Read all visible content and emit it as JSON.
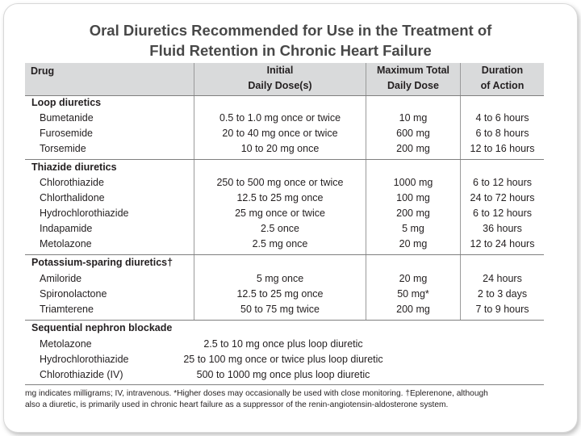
{
  "title_line1": "Oral Diuretics Recommended for Use in the Treatment of",
  "title_line2": "Fluid Retention in Chronic Heart Failure",
  "headers": {
    "drug": "Drug",
    "initial_1": "Initial",
    "initial_2": "Daily Dose(s)",
    "max_1": "Maximum Total",
    "max_2": "Daily Dose",
    "dur_1": "Duration",
    "dur_2": "of Action"
  },
  "sections": [
    {
      "title": "Loop diuretics",
      "rows": [
        {
          "drug": "Bumetanide",
          "initial": "0.5 to 1.0 mg once or twice",
          "max": "10 mg",
          "duration": "4 to 6 hours"
        },
        {
          "drug": "Furosemide",
          "initial": "20 to 40 mg once or twice",
          "max": "600 mg",
          "duration": "6 to 8 hours"
        },
        {
          "drug": "Torsemide",
          "initial": "10 to 20 mg once",
          "max": "200 mg",
          "duration": "12 to 16 hours"
        }
      ]
    },
    {
      "title": "Thiazide diuretics",
      "rows": [
        {
          "drug": "Chlorothiazide",
          "initial": "250 to 500 mg once or twice",
          "max": "1000 mg",
          "duration": "6 to 12 hours"
        },
        {
          "drug": "Chlorthalidone",
          "initial": "12.5 to 25 mg once",
          "max": "100 mg",
          "duration": "24 to 72 hours"
        },
        {
          "drug": "Hydrochlorothiazide",
          "initial": "25 mg once or twice",
          "max": "200 mg",
          "duration": "6 to 12 hours"
        },
        {
          "drug": "Indapamide",
          "initial": "2.5 once",
          "max": "5 mg",
          "duration": "36 hours"
        },
        {
          "drug": "Metolazone",
          "initial": "2.5 mg once",
          "max": "20 mg",
          "duration": "12 to 24 hours"
        }
      ]
    },
    {
      "title": "Potassium-sparing diuretics†",
      "rows": [
        {
          "drug": "Amiloride",
          "initial": "5 mg once",
          "max": "20 mg",
          "duration": "24 hours"
        },
        {
          "drug": "Spironolactone",
          "initial": "12.5 to 25 mg once",
          "max": "50 mg*",
          "duration": "2 to 3 days"
        },
        {
          "drug": "Triamterene",
          "initial": "50 to 75 mg twice",
          "max": "200 mg",
          "duration": "7 to 9 hours"
        }
      ]
    },
    {
      "title": "Sequential nephron blockade",
      "rows": [
        {
          "drug": "Metolazone",
          "combined": "2.5 to 10 mg once plus loop diuretic"
        },
        {
          "drug": "Hydrochlorothiazide",
          "combined": "25 to 100 mg once or twice plus loop diuretic"
        },
        {
          "drug": "Chlorothiazide (IV)",
          "combined": "500 to 1000 mg once plus loop diuretic"
        }
      ]
    }
  ],
  "footnote_line1": "mg indicates milligrams; IV, intravenous. *Higher doses may occasionally be used with close monitoring. †Eplerenone, although",
  "footnote_line2": "also a diuretic, is primarily used in chronic heart failure as a suppressor of the renin-angiotensin-aldosterone system."
}
